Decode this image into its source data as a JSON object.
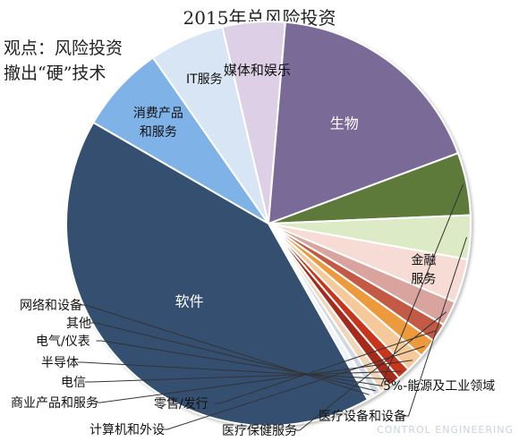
{
  "title": "2015年总风险投资",
  "viewpoint": {
    "line1": "观点：风险投资",
    "line2": "撤出“硬”技术"
  },
  "watermark": "CONTROL ENGINEERING",
  "colors": {
    "software": "#34506f",
    "consumer": "#7fb2e6",
    "it": "#d8e5f4",
    "media": "#ddd0e6",
    "biotech": "#7a6b97",
    "energy": "#5d7a3a",
    "meddevice": "#dcebc5",
    "finance": "#f6dcd5",
    "healthservice": "#d9a49d",
    "retail": "#c25a44",
    "computer": "#ed9a3e",
    "business": "#f5c99a",
    "telecom": "#c7351b",
    "semi": "#a52a1c",
    "electrical": "#f0d6b8",
    "other": "#d3d8e0",
    "network": "#eef3f8"
  },
  "chart_data": {
    "type": "pie",
    "title": "2015年总风险投资",
    "slices": [
      {
        "label": "消费产品和服务",
        "value": 7.0,
        "color_key": "consumer"
      },
      {
        "label": "IT服务",
        "value": 6.0,
        "color_key": "it"
      },
      {
        "label": "媒体和娱乐",
        "value": 5.0,
        "color_key": "media"
      },
      {
        "label": "生物",
        "value": 18.0,
        "color_key": "biotech"
      },
      {
        "label": "5%-能源及工业领域",
        "value": 5.0,
        "color_key": "energy"
      },
      {
        "label": "医疗设备和设备",
        "value": 3.5,
        "color_key": "meddevice"
      },
      {
        "label": "金融服务",
        "value": 3.5,
        "color_key": "finance"
      },
      {
        "label": "医疗保健服务",
        "value": 2.0,
        "color_key": "healthservice"
      },
      {
        "label": "零售/发行",
        "value": 1.5,
        "color_key": "retail"
      },
      {
        "label": "计算机和外设",
        "value": 1.5,
        "color_key": "computer"
      },
      {
        "label": "商业产品和服务",
        "value": 1.5,
        "color_key": "business"
      },
      {
        "label": "电信",
        "value": 1.0,
        "color_key": "telecom"
      },
      {
        "label": "半导体",
        "value": 1.0,
        "color_key": "semi"
      },
      {
        "label": "电气/仪表",
        "value": 0.8,
        "color_key": "electrical"
      },
      {
        "label": "其他",
        "value": 0.6,
        "color_key": "other"
      },
      {
        "label": "网络和设备",
        "value": 0.6,
        "color_key": "network"
      },
      {
        "label": "软件",
        "value": 41.5,
        "color_key": "software"
      }
    ]
  }
}
